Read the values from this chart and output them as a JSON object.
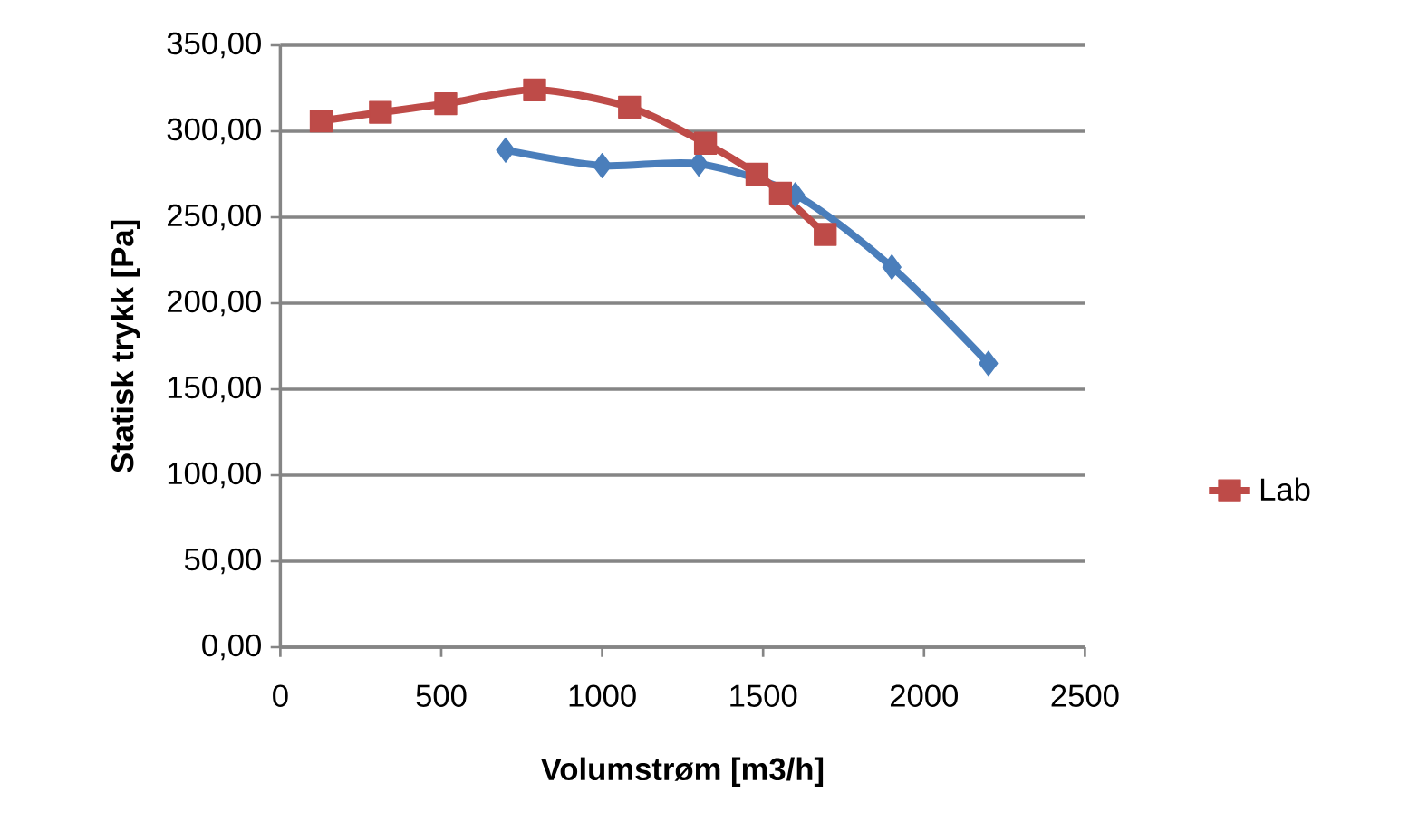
{
  "chart_data": {
    "type": "line",
    "xlabel": "Volumstrøm [m3/h]",
    "ylabel": "Statisk trykk [Pa]",
    "xlim": [
      0,
      2500
    ],
    "xticks": [
      0,
      500,
      1000,
      1500,
      2000,
      2500
    ],
    "ylim": [
      0,
      350
    ],
    "yticks": [
      {
        "value": 0,
        "label": "0,00"
      },
      {
        "value": 50,
        "label": "50,00"
      },
      {
        "value": 100,
        "label": "100,00"
      },
      {
        "value": 150,
        "label": "150,00"
      },
      {
        "value": 200,
        "label": "200,00"
      },
      {
        "value": 250,
        "label": "250,00"
      },
      {
        "value": 300,
        "label": "300,00"
      },
      {
        "value": 350,
        "label": "350,00"
      }
    ],
    "grid": "y",
    "legend": "right",
    "series": [
      {
        "color": "#4a7ebb",
        "marker": "diamond",
        "x": [
          700,
          1000,
          1300,
          1600,
          1900,
          2200
        ],
        "values": [
          289,
          280,
          281,
          263,
          221,
          165
        ]
      },
      {
        "name": "Lab",
        "color": "#be4b48",
        "marker": "square",
        "x": [
          127,
          311,
          514,
          790,
          1085,
          1321,
          1481,
          1554,
          1693
        ],
        "values": [
          306,
          311,
          316,
          324,
          314,
          293,
          275,
          264,
          240
        ]
      }
    ]
  }
}
